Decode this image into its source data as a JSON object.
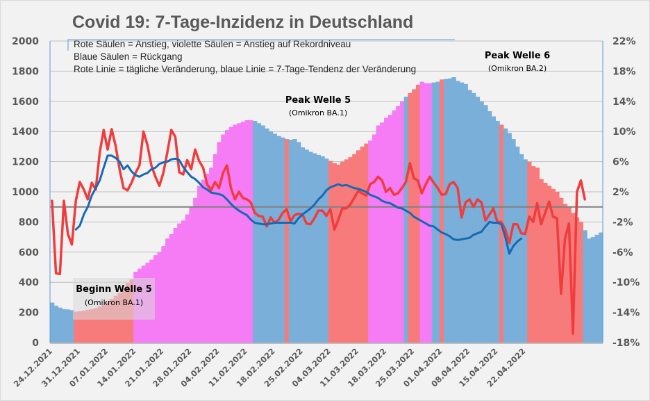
{
  "chart_data": {
    "type": "bar",
    "title": "Covid 19: 7-Tage-Inzidenz in Deutschland",
    "legend": [
      "Rote Säulen = Anstieg, violette Säulen = Anstieg auf Rekordniveau",
      "Blaue Säulen = Rückgang",
      "Rote Linie = tägliche Veränderung, blaue Linie = 7-Tage-Tendenz der Veränderung"
    ],
    "legend_placement": "top-left",
    "grid": true,
    "y_left": {
      "range": [
        0,
        2000
      ],
      "ticks": [
        "0",
        "200",
        "400",
        "600",
        "800",
        "1000",
        "1200",
        "1400",
        "1600",
        "1800",
        "2000"
      ]
    },
    "y_right": {
      "range": [
        -18,
        22
      ],
      "unit": "%",
      "ticks": [
        "-18%",
        "-14%",
        "-10%",
        "-6%",
        "-2%",
        "2%",
        "6%",
        "10%",
        "14%",
        "18%",
        "22%"
      ]
    },
    "x_ticks": [
      "24.12.2021",
      "31.12.2021",
      "07.01.2022",
      "14.01.2022",
      "21.01.2022",
      "28.01.2022",
      "04.02.2022",
      "11.02.2022",
      "18.02.2022",
      "25.02.2022",
      "04.03.2022",
      "11.03.2022",
      "18.03.2022",
      "25.03.2022",
      "01.04.2022",
      "08.04.2022",
      "15.04.2022",
      "22.04.2022"
    ],
    "x_start": "24.12.2021",
    "colors": {
      "red": "#f77b7b",
      "magenta": "#f57cf5",
      "blue": "#79afd8",
      "red_line": "#f03c3c",
      "blue_line": "#1769b5",
      "zero_line": "#808080"
    },
    "bar_series": {
      "name": "7-Tage-Inzidenz",
      "values": [
        265,
        245,
        232,
        222,
        220,
        215,
        205,
        208,
        212,
        218,
        222,
        228,
        240,
        250,
        268,
        290,
        310,
        330,
        365,
        395,
        420,
        470,
        490,
        510,
        530,
        550,
        580,
        600,
        640,
        690,
        720,
        760,
        790,
        810,
        850,
        900,
        960,
        1040,
        1080,
        1120,
        1160,
        1250,
        1330,
        1380,
        1410,
        1430,
        1445,
        1455,
        1465,
        1475,
        1475,
        1470,
        1455,
        1440,
        1420,
        1400,
        1385,
        1370,
        1360,
        1350,
        1345,
        1350,
        1330,
        1295,
        1280,
        1265,
        1255,
        1245,
        1235,
        1220,
        1205,
        1190,
        1180,
        1200,
        1215,
        1230,
        1250,
        1275,
        1300,
        1320,
        1340,
        1380,
        1440,
        1460,
        1490,
        1510,
        1540,
        1570,
        1600,
        1630,
        1655,
        1680,
        1710,
        1730,
        1720,
        1720,
        1725,
        1730,
        1745,
        1748,
        1752,
        1760,
        1735,
        1725,
        1715,
        1675,
        1655,
        1630,
        1600,
        1575,
        1535,
        1500,
        1470,
        1445,
        1420,
        1390,
        1350,
        1300,
        1250,
        1215,
        1200,
        1170,
        1160,
        1085,
        1060,
        1040,
        1020,
        1000,
        960,
        920,
        900,
        860,
        830,
        800,
        745,
        690,
        700,
        715,
        730
      ],
      "colors": [
        "blue",
        "blue",
        "blue",
        "blue",
        "blue",
        "blue",
        "red",
        "red",
        "red",
        "red",
        "red",
        "red",
        "red",
        "red",
        "red",
        "red",
        "red",
        "red",
        "red",
        "red",
        "red",
        "magenta",
        "magenta",
        "magenta",
        "magenta",
        "magenta",
        "magenta",
        "magenta",
        "magenta",
        "magenta",
        "magenta",
        "magenta",
        "magenta",
        "magenta",
        "magenta",
        "magenta",
        "magenta",
        "magenta",
        "magenta",
        "magenta",
        "magenta",
        "magenta",
        "magenta",
        "magenta",
        "magenta",
        "magenta",
        "magenta",
        "magenta",
        "magenta",
        "magenta",
        "magenta",
        "blue",
        "blue",
        "blue",
        "blue",
        "blue",
        "blue",
        "blue",
        "blue",
        "red",
        "blue",
        "blue",
        "blue",
        "blue",
        "blue",
        "blue",
        "blue",
        "blue",
        "blue",
        "blue",
        "red",
        "red",
        "red",
        "red",
        "red",
        "red",
        "red",
        "red",
        "red",
        "red",
        "magenta",
        "magenta",
        "magenta",
        "magenta",
        "magenta",
        "magenta",
        "magenta",
        "magenta",
        "magenta",
        "blue",
        "red",
        "red",
        "red",
        "magenta",
        "magenta",
        "magenta",
        "blue",
        "blue",
        "red",
        "blue",
        "blue",
        "blue",
        "blue",
        "blue",
        "blue",
        "blue",
        "blue",
        "blue",
        "blue",
        "blue",
        "blue",
        "blue",
        "blue",
        "red",
        "blue",
        "blue",
        "blue",
        "blue",
        "blue",
        "blue",
        "red",
        "red",
        "red",
        "red",
        "red",
        "red",
        "red",
        "red",
        "red",
        "red",
        "red",
        "red",
        "red",
        "red"
      ]
    },
    "line_series": [
      {
        "name": "tägliche Veränderung (%)",
        "axis": "right",
        "start_day": 0,
        "values": [
          0.8,
          -8.8,
          -8.9,
          0.8,
          -3.6,
          -5.0,
          0.8,
          3.3,
          2.3,
          1.0,
          3.2,
          2.3,
          7.2,
          10.2,
          7.6,
          10.3,
          8.1,
          5.0,
          2.5,
          2.2,
          3.2,
          4.5,
          5.5,
          10.0,
          8.2,
          5.5,
          4.0,
          2.8,
          4.5,
          7.2,
          10.2,
          9.3,
          4.6,
          4.3,
          6.2,
          5.0,
          7.6,
          6.1,
          5.2,
          3.0,
          2.2,
          3.3,
          2.5,
          4.5,
          5.5,
          2.5,
          1.0,
          2.0,
          1.2,
          1.0,
          0.6,
          -0.8,
          -1.2,
          -1.3,
          -2.6,
          -1.4,
          -2.1,
          -1.7,
          -0.8,
          -0.3,
          -1.9,
          -1.1,
          -0.9,
          -1.0,
          -2.2,
          -2.3,
          -1.5,
          -0.5,
          -0.5,
          -1.2,
          -0.3,
          -3.0,
          -1.7,
          -0.2,
          -0.2,
          0.3,
          1.2,
          2.1,
          1.8,
          1.5,
          3.0,
          3.3,
          4.0,
          3.5,
          2.0,
          2.5,
          1.6,
          1.8,
          2.5,
          3.3,
          5.8,
          3.8,
          3.5,
          1.8,
          3.0,
          4.0,
          3.2,
          2.5,
          1.6,
          1.7,
          3.0,
          3.3,
          2.5,
          -1.4,
          0.6,
          1.0,
          0.0,
          1.0,
          0.6,
          -1.8,
          -1.0,
          -0.2,
          -2.0,
          -2.0,
          -3.0,
          -4.8,
          -2.3,
          -2.3,
          -3.5,
          -3.6,
          -1.3,
          -2.0,
          0.5,
          -2.3,
          -0.8,
          0.7,
          -1.3,
          -1.5,
          -11.5,
          -4.2,
          -2.2,
          -16.8,
          2.0,
          3.5,
          1.0
        ]
      },
      {
        "name": "7-Tage-Tendenz (%)",
        "axis": "right",
        "start_day": 6,
        "values": [
          -3.0,
          -2.5,
          -1.0,
          0.0,
          1.5,
          2.5,
          3.5,
          5.2,
          6.8,
          6.8,
          6.5,
          6.0,
          5.0,
          5.5,
          4.7,
          4.2,
          4.0,
          4.3,
          4.5,
          5.0,
          5.2,
          5.7,
          5.9,
          6.0,
          6.3,
          6.4,
          6.2,
          5.3,
          4.6,
          4.0,
          3.7,
          3.2,
          2.6,
          2.3,
          1.9,
          1.8,
          1.7,
          1.5,
          1.0,
          0.4,
          -0.1,
          -0.5,
          -0.8,
          -1.1,
          -1.7,
          -2.1,
          -2.2,
          -2.3,
          -2.3,
          -2.2,
          -2.1,
          -2.1,
          -2.1,
          -2.1,
          -2.1,
          -2.2,
          -1.5,
          -1.0,
          -0.6,
          -0.2,
          0.3,
          1.0,
          1.5,
          2.2,
          2.6,
          2.8,
          3.0,
          2.8,
          2.9,
          2.7,
          2.5,
          2.4,
          2.2,
          2.0,
          1.6,
          1.4,
          1.2,
          0.8,
          0.6,
          0.5,
          0.2,
          -0.1,
          -0.2,
          -0.5,
          -0.8,
          -1.3,
          -1.6,
          -1.9,
          -2.2,
          -2.5,
          -2.6,
          -3.0,
          -3.4,
          -3.6,
          -3.9,
          -4.3,
          -4.4,
          -4.3,
          -4.2,
          -4.1,
          -3.7,
          -3.5,
          -3.3,
          -2.6,
          -2.0,
          -2.1,
          -2.1,
          -2.3,
          -4.0,
          -6.2,
          -5.2,
          -4.6,
          -4.2
        ]
      }
    ],
    "annotations": [
      {
        "title": "Beginn Welle 5",
        "subtitle": "(Omikron BA.1)"
      },
      {
        "title": "Peak Welle 5",
        "subtitle": "(Omikron BA.1)"
      },
      {
        "title": "Peak Welle 6",
        "subtitle": "(Omikron BA.2)"
      }
    ]
  }
}
